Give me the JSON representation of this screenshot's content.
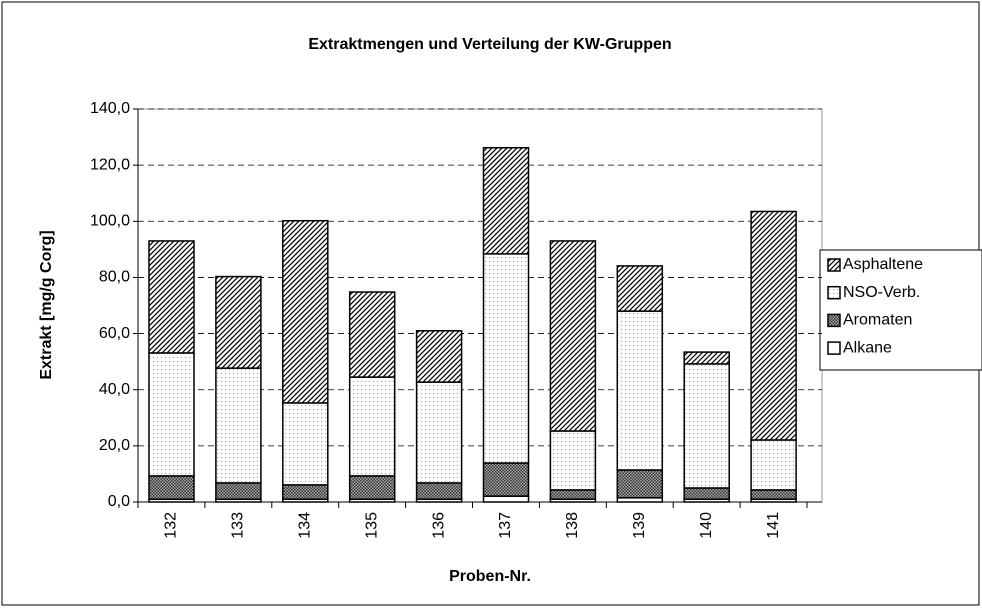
{
  "chart_data": {
    "type": "stacked_bar",
    "title": "Extraktmengen und Verteilung der KW-Gruppen",
    "x_label": "Proben-Nr.",
    "y_label": "Extrakt [mg/g Corg]",
    "categories": [
      "132",
      "133",
      "134",
      "135",
      "136",
      "137",
      "138",
      "139",
      "140",
      "141"
    ],
    "series": [
      {
        "name": "Alkane",
        "color": "#ffffff",
        "pattern": "solid",
        "values": [
          1.0,
          1.0,
          1.0,
          1.0,
          1.0,
          2.1,
          1.0,
          1.5,
          1.0,
          1.0
        ]
      },
      {
        "name": "Aromaten",
        "color": "#808080",
        "pattern": "crosshatch",
        "values": [
          8.3,
          5.8,
          5.1,
          8.3,
          5.8,
          11.8,
          3.3,
          9.9,
          4.0,
          3.3
        ]
      },
      {
        "name": "NSO-Verb.",
        "color": "#ffffff",
        "pattern": "dots",
        "values": [
          43.8,
          40.9,
          29.2,
          35.2,
          35.9,
          74.5,
          21.0,
          56.6,
          44.2,
          17.8
        ]
      },
      {
        "name": "Asphaltene",
        "color": "#ffffff",
        "pattern": "diagonal",
        "values": [
          39.9,
          32.6,
          64.9,
          30.3,
          18.3,
          37.8,
          67.7,
          16.1,
          4.2,
          81.4
        ]
      }
    ],
    "ylim": [
      0,
      140
    ],
    "yticks": [
      {
        "value": 0,
        "label": "0,0"
      },
      {
        "value": 20,
        "label": "20,0"
      },
      {
        "value": 40,
        "label": "40,0"
      },
      {
        "value": 60,
        "label": "60,0"
      },
      {
        "value": 80,
        "label": "80,0"
      },
      {
        "value": 100,
        "label": "100,0"
      },
      {
        "value": 120,
        "label": "120,0"
      },
      {
        "value": 140,
        "label": "140,0"
      }
    ],
    "grid": true,
    "legend": "right"
  }
}
